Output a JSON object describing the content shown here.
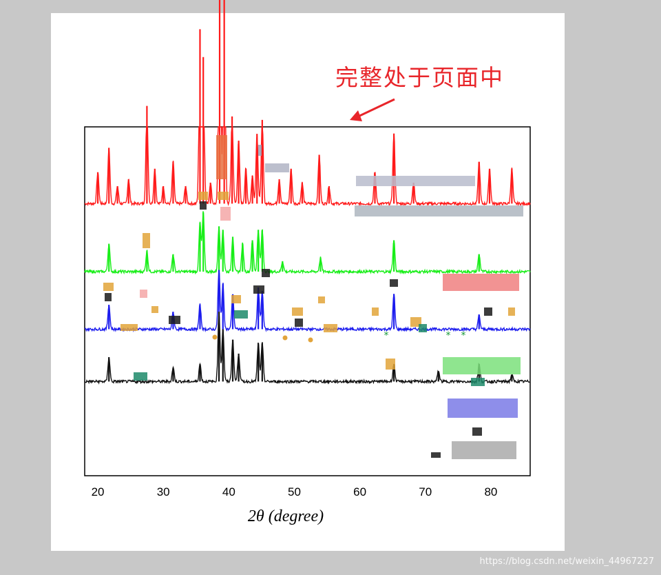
{
  "annotation": {
    "text": "完整处于页面中",
    "color": "#e8252a"
  },
  "watermark": "https://blog.csdn.net/weixin_44967227",
  "chart_data": {
    "type": "line",
    "title": "",
    "xlabel": "2θ (degree)",
    "ylabel": "",
    "xlim": [
      18,
      86
    ],
    "x_ticks": [
      20,
      30,
      40,
      50,
      60,
      70,
      80
    ],
    "grid": false,
    "series": [
      {
        "color": "#ff1a1a",
        "baseline": 0.78,
        "peaks": [
          [
            20,
            0.09
          ],
          [
            21.7,
            0.16
          ],
          [
            23,
            0.05
          ],
          [
            24.7,
            0.07
          ],
          [
            27.5,
            0.28
          ],
          [
            28.7,
            0.1
          ],
          [
            30,
            0.05
          ],
          [
            31.5,
            0.12
          ],
          [
            33.4,
            0.05
          ],
          [
            35.6,
            0.5
          ],
          [
            36.1,
            0.42
          ],
          [
            37.2,
            0.06
          ],
          [
            38.6,
            0.98
          ],
          [
            39.3,
            0.8
          ],
          [
            40.5,
            0.25
          ],
          [
            41.5,
            0.18
          ],
          [
            42.6,
            0.1
          ],
          [
            43.6,
            0.08
          ],
          [
            44.3,
            0.2
          ],
          [
            45.1,
            0.24
          ],
          [
            47.7,
            0.07
          ],
          [
            49.5,
            0.1
          ],
          [
            51.2,
            0.06
          ],
          [
            53.8,
            0.14
          ],
          [
            55.3,
            0.05
          ],
          [
            62.3,
            0.09
          ],
          [
            65.2,
            0.2
          ],
          [
            68.2,
            0.06
          ],
          [
            78.2,
            0.12
          ],
          [
            79.8,
            0.1
          ],
          [
            83.2,
            0.1
          ]
        ]
      },
      {
        "color": "#18ee18",
        "baseline": 0.585,
        "peaks": [
          [
            21.7,
            0.08
          ],
          [
            27.5,
            0.06
          ],
          [
            31.5,
            0.05
          ],
          [
            35.6,
            0.14
          ],
          [
            36.1,
            0.17
          ],
          [
            38.5,
            0.13
          ],
          [
            39.1,
            0.12
          ],
          [
            40.6,
            0.1
          ],
          [
            42.1,
            0.08
          ],
          [
            43.6,
            0.09
          ],
          [
            44.5,
            0.12
          ],
          [
            45.1,
            0.12
          ],
          [
            48.2,
            0.03
          ],
          [
            54,
            0.04
          ],
          [
            65.2,
            0.09
          ],
          [
            78.2,
            0.05
          ]
        ]
      },
      {
        "color": "#1c1cee",
        "baseline": 0.42,
        "peaks": [
          [
            21.7,
            0.07
          ],
          [
            31.5,
            0.05
          ],
          [
            35.6,
            0.07
          ],
          [
            38.5,
            0.17
          ],
          [
            39.1,
            0.13
          ],
          [
            40.6,
            0.1
          ],
          [
            44.5,
            0.12
          ],
          [
            45.1,
            0.11
          ],
          [
            65.2,
            0.1
          ],
          [
            78.2,
            0.04
          ]
        ]
      },
      {
        "color": "#111111",
        "baseline": 0.27,
        "peaks": [
          [
            21.7,
            0.07
          ],
          [
            31.5,
            0.04
          ],
          [
            35.6,
            0.05
          ],
          [
            38.5,
            0.2
          ],
          [
            39.1,
            0.15
          ],
          [
            40.6,
            0.12
          ],
          [
            41.5,
            0.08
          ],
          [
            44.5,
            0.11
          ],
          [
            45.1,
            0.11
          ],
          [
            65.2,
            0.05
          ],
          [
            72,
            0.03
          ],
          [
            78.2,
            0.05
          ],
          [
            83.2,
            0.02
          ]
        ]
      }
    ],
    "legend_placement": "right"
  }
}
